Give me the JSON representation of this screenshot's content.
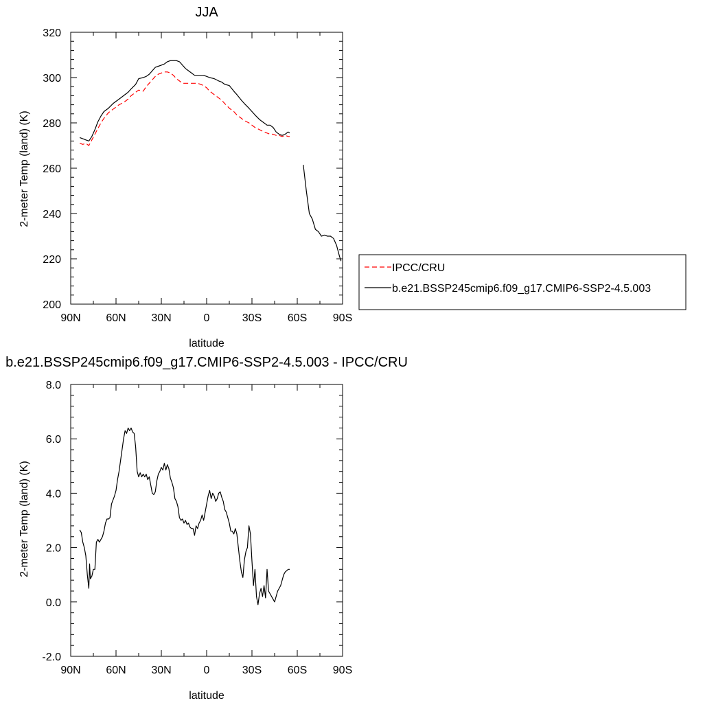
{
  "chart_data": [
    {
      "type": "line",
      "title": "JJA",
      "xlabel": "latitude",
      "ylabel": "2-meter Temp (land) (K)",
      "xlim": [
        90,
        -90
      ],
      "ylim": [
        200,
        320
      ],
      "x_ticks": [
        90,
        60,
        30,
        0,
        -30,
        -60,
        -90
      ],
      "x_tick_labels": [
        "90N",
        "60N",
        "30N",
        "0",
        "30S",
        "60S",
        "90S"
      ],
      "y_ticks": [
        200,
        220,
        240,
        260,
        280,
        300,
        320
      ],
      "y_tick_labels": [
        "200",
        "220",
        "240",
        "260",
        "280",
        "300",
        "320"
      ],
      "legend_position": "right",
      "series": [
        {
          "name": "IPCC/CRU",
          "color": "#ff0000",
          "style": "dashed",
          "x": [
            84,
            82,
            80,
            78,
            76,
            74,
            72,
            70,
            68,
            65,
            62,
            60,
            58,
            55,
            52,
            50,
            47,
            45,
            42,
            40,
            38,
            36,
            34,
            32,
            30,
            28,
            26,
            24,
            22,
            20,
            18,
            16,
            14,
            12,
            10,
            8,
            6,
            4,
            2,
            0,
            -2,
            -5,
            -8,
            -10,
            -12,
            -15,
            -18,
            -20,
            -23,
            -25,
            -28,
            -30,
            -32,
            -35,
            -38,
            -40,
            -42,
            -44,
            -46,
            -48,
            -50,
            -52,
            -54,
            -55
          ],
          "values": [
            271,
            270.5,
            271,
            270,
            272.5,
            275,
            277.5,
            280,
            282,
            284.5,
            286,
            287,
            288,
            289,
            290.5,
            292,
            293.5,
            294.5,
            294,
            296,
            297.5,
            299,
            300.5,
            301.5,
            302,
            302.5,
            302.5,
            302,
            301,
            299.5,
            298.5,
            297.5,
            297.5,
            297.5,
            297.5,
            297.5,
            297.5,
            297,
            296.5,
            295.5,
            294,
            292.5,
            291,
            290,
            288.5,
            286.5,
            285,
            283.5,
            282,
            281,
            280,
            279,
            278,
            277,
            276,
            275.5,
            275,
            275,
            274.5,
            274.5,
            274,
            274.5,
            274,
            274
          ]
        },
        {
          "name": "b.e21.BSSP245cmip6.f09_g17.CMIP6-SSP2-4.5.003",
          "color": "#000000",
          "style": "solid",
          "x": [
            84,
            82,
            80,
            78,
            76,
            74,
            72,
            70,
            68,
            65,
            62,
            60,
            58,
            55,
            52,
            50,
            47,
            45,
            42,
            40,
            38,
            36,
            34,
            32,
            30,
            28,
            26,
            24,
            22,
            20,
            18,
            16,
            14,
            12,
            10,
            8,
            6,
            4,
            2,
            0,
            -2,
            -5,
            -8,
            -10,
            -12,
            -15,
            -18,
            -20,
            -23,
            -25,
            -28,
            -30,
            -32,
            -35,
            -38,
            -40,
            -42,
            -44,
            -46,
            -48,
            -50,
            -52,
            -54,
            -55
          ],
          "values": [
            273.5,
            273,
            272.5,
            272,
            274,
            277,
            280.5,
            283,
            285,
            286.5,
            288.5,
            289.5,
            290.5,
            292,
            293.5,
            295,
            297,
            299.5,
            300,
            300.5,
            301.5,
            303,
            304.5,
            305,
            305.5,
            306,
            307,
            307.5,
            307.5,
            307.5,
            307,
            305.5,
            304,
            303,
            302,
            301,
            301,
            301,
            301,
            300.5,
            300,
            299.5,
            298.5,
            298,
            297,
            296.5,
            294,
            292.5,
            290,
            288.5,
            286.5,
            285,
            283.5,
            281.5,
            280,
            279,
            279,
            278,
            276,
            275,
            274.5,
            275,
            276,
            275.5
          ]
        },
        {
          "name": "b.e21.BSSP245cmip6.f09_g17.CMIP6-SSP2-4.5.003",
          "color": "#000000",
          "style": "solid",
          "x": [
            -64,
            -66,
            -68,
            -70,
            -72,
            -74,
            -76,
            -78,
            -80,
            -82,
            -84,
            -86,
            -88,
            -89
          ],
          "values": [
            261.5,
            250,
            240,
            237.5,
            233,
            232,
            230,
            230.5,
            230,
            230,
            229,
            226,
            221,
            219
          ]
        }
      ]
    },
    {
      "type": "line",
      "title": "b.e21.BSSP245cmip6.f09_g17.CMIP6-SSP2-4.5.003 - IPCC/CRU",
      "xlabel": "latitude",
      "ylabel": "2-meter Temp (land) (K)",
      "xlim": [
        90,
        -90
      ],
      "ylim": [
        -2,
        8
      ],
      "x_ticks": [
        90,
        60,
        30,
        0,
        -30,
        -60,
        -90
      ],
      "x_tick_labels": [
        "90N",
        "60N",
        "30N",
        "0",
        "30S",
        "60S",
        "90S"
      ],
      "y_ticks": [
        -2,
        0,
        2,
        4,
        6,
        8
      ],
      "y_tick_labels": [
        "-2.0",
        "0.0",
        "2.0",
        "4.0",
        "6.0",
        "8.0"
      ],
      "series": [
        {
          "color": "#000000",
          "style": "solid",
          "x": [
            84,
            83,
            82,
            81,
            80,
            79,
            78,
            77.5,
            77,
            76,
            75,
            74,
            73,
            72,
            71,
            70,
            69,
            68,
            67,
            66,
            65,
            64,
            63,
            62,
            61,
            60,
            59,
            58,
            57,
            56,
            55,
            54,
            53,
            52,
            51,
            50,
            49,
            48,
            47,
            46,
            45,
            44,
            43,
            42,
            41,
            40,
            39,
            38,
            37,
            36,
            35,
            34,
            33,
            32,
            31,
            30,
            29,
            28,
            27,
            26,
            25,
            24,
            23,
            22,
            21,
            20,
            19,
            18,
            17,
            16,
            15,
            14,
            13,
            12,
            11,
            10,
            9,
            8,
            7,
            6,
            5,
            4,
            3,
            2,
            1,
            0,
            -1,
            -2,
            -3,
            -4,
            -5,
            -6,
            -7,
            -8,
            -9,
            -10,
            -11,
            -12,
            -13,
            -14,
            -15,
            -16,
            -17,
            -18,
            -19,
            -20,
            -21,
            -22,
            -23,
            -24,
            -25,
            -26,
            -27,
            -28,
            -29,
            -30,
            -31,
            -32,
            -33,
            -34,
            -35,
            -36,
            -37,
            -38,
            -39,
            -40,
            -41,
            -42,
            -43,
            -44,
            -45,
            -46,
            -47,
            -48,
            -49,
            -50,
            -51,
            -52,
            -53,
            -54,
            -55
          ],
          "values": [
            2.65,
            2.55,
            2.2,
            2.0,
            1.7,
            1.0,
            0.5,
            1.4,
            0.85,
            0.95,
            1.2,
            1.2,
            2.2,
            2.3,
            2.2,
            2.3,
            2.4,
            2.6,
            2.9,
            3.05,
            3.05,
            3.1,
            3.6,
            3.75,
            3.9,
            4.1,
            4.5,
            4.8,
            5.2,
            5.6,
            6.0,
            6.3,
            6.2,
            6.4,
            6.3,
            6.4,
            6.25,
            6.2,
            5.7,
            4.8,
            4.6,
            4.75,
            4.6,
            4.7,
            4.6,
            4.7,
            4.5,
            4.6,
            4.3,
            4.0,
            3.95,
            4.05,
            4.45,
            4.7,
            4.8,
            4.95,
            4.85,
            5.1,
            4.85,
            5.05,
            4.9,
            4.55,
            4.4,
            4.2,
            3.8,
            3.7,
            3.5,
            3.1,
            3.0,
            3.05,
            2.9,
            3.0,
            2.85,
            2.9,
            2.75,
            2.7,
            2.7,
            2.45,
            2.8,
            2.7,
            2.9,
            3.0,
            3.2,
            3.0,
            3.3,
            3.6,
            3.9,
            4.1,
            3.8,
            4.0,
            3.9,
            3.7,
            3.8,
            4.0,
            4.05,
            3.85,
            3.7,
            3.4,
            3.3,
            3.1,
            2.9,
            2.6,
            2.6,
            2.5,
            2.7,
            2.5,
            2.0,
            1.5,
            1.1,
            0.9,
            1.55,
            1.85,
            2.0,
            2.8,
            2.5,
            1.5,
            0.6,
            1.2,
            0.2,
            -0.1,
            0.3,
            0.5,
            0.2,
            0.6,
            0.15,
            1.2,
            0.4,
            0.3,
            0.2,
            0.1,
            0.0,
            0.2,
            0.4,
            0.5,
            0.6,
            0.8,
            1.0,
            1.1,
            1.15,
            1.2,
            1.2
          ]
        }
      ]
    }
  ]
}
